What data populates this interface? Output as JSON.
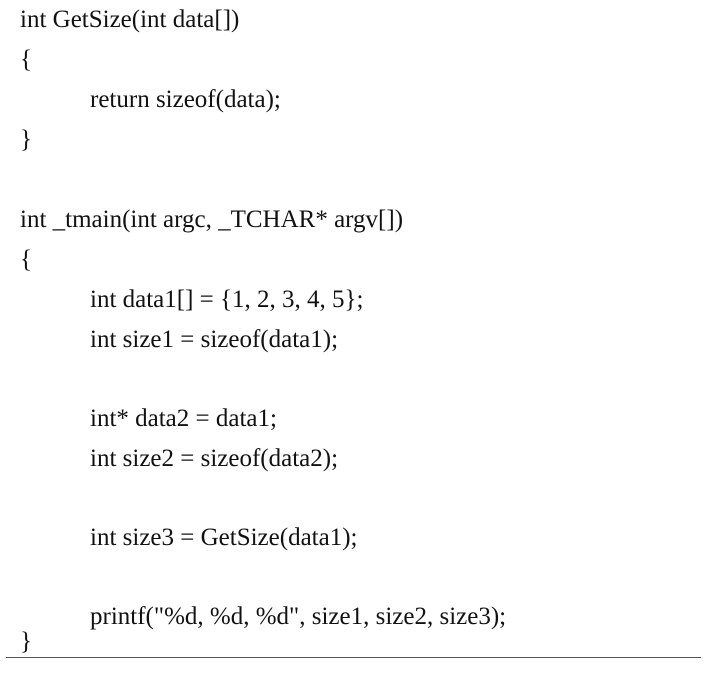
{
  "code": {
    "lines": [
      "int GetSize(int data[])",
      "{",
      "return sizeof(data);",
      "}",
      "int _tmain(int argc, _TCHAR* argv[])",
      "{",
      "int data1[] = {1, 2, 3, 4, 5};",
      "int size1 = sizeof(data1);",
      "int* data2 = data1;",
      "int size2 = sizeof(data2);",
      "int size3 = GetSize(data1);",
      "printf(\"%d, %d, %d\", size1, size2, size3);",
      "}"
    ]
  },
  "colors": {
    "text": "#111111",
    "background": "#ffffff",
    "rule": "#555555"
  }
}
